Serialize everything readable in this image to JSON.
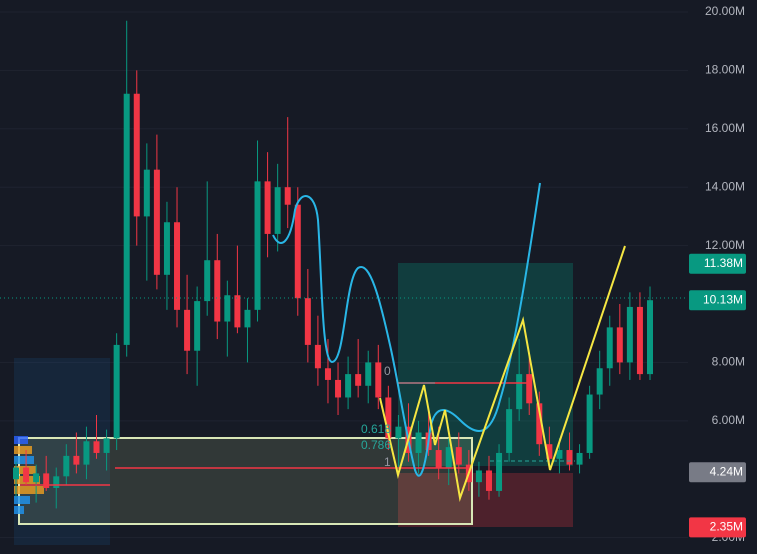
{
  "chart_data": {
    "type": "candlestick",
    "up_color": "#089981",
    "down_color": "#f23645",
    "ylim": [
      1.44,
      20.41
    ],
    "yticks": [
      {
        "value": 20,
        "label": "20.00M"
      },
      {
        "value": 18,
        "label": "18.00M"
      },
      {
        "value": 16,
        "label": "16.00M"
      },
      {
        "value": 14,
        "label": "14.00M"
      },
      {
        "value": 12,
        "label": "12.00M"
      },
      {
        "value": 8,
        "label": "8.00M"
      },
      {
        "value": 6,
        "label": "6.00M"
      },
      {
        "value": 2,
        "label": "2.00M"
      }
    ],
    "ohlc": [
      [
        4.0,
        4.6,
        3.4,
        4.4
      ],
      [
        4.4,
        5.0,
        3.8,
        3.9
      ],
      [
        3.9,
        4.5,
        3.2,
        4.2
      ],
      [
        4.2,
        4.8,
        3.6,
        3.7
      ],
      [
        3.7,
        4.4,
        3.0,
        4.1
      ],
      [
        4.1,
        5.2,
        3.8,
        4.8
      ],
      [
        4.8,
        5.6,
        4.2,
        4.5
      ],
      [
        4.5,
        5.8,
        4.0,
        5.3
      ],
      [
        5.3,
        6.2,
        4.7,
        4.9
      ],
      [
        4.9,
        5.7,
        4.3,
        5.4
      ],
      [
        5.4,
        9.0,
        5.0,
        8.6
      ],
      [
        8.6,
        19.7,
        8.2,
        17.2
      ],
      [
        17.2,
        18.0,
        12.0,
        13.0
      ],
      [
        13.0,
        15.5,
        10.8,
        14.6
      ],
      [
        14.6,
        15.8,
        10.5,
        11.0
      ],
      [
        11.0,
        13.5,
        9.8,
        12.8
      ],
      [
        12.8,
        14.0,
        9.2,
        9.8
      ],
      [
        9.8,
        11.0,
        7.6,
        8.4
      ],
      [
        8.4,
        10.6,
        7.2,
        10.1
      ],
      [
        10.1,
        14.2,
        9.6,
        11.5
      ],
      [
        11.5,
        12.4,
        8.8,
        9.4
      ],
      [
        9.4,
        10.8,
        8.2,
        10.3
      ],
      [
        10.3,
        12.0,
        9.0,
        9.2
      ],
      [
        9.2,
        10.2,
        8.0,
        9.8
      ],
      [
        9.8,
        15.6,
        9.4,
        14.2
      ],
      [
        14.2,
        15.2,
        11.6,
        12.4
      ],
      [
        12.4,
        14.8,
        11.8,
        14.0
      ],
      [
        14.0,
        16.4,
        12.6,
        13.4
      ],
      [
        13.4,
        14.0,
        9.6,
        10.2
      ],
      [
        10.2,
        11.2,
        8.0,
        8.6
      ],
      [
        8.6,
        9.6,
        7.2,
        7.8
      ],
      [
        7.8,
        8.8,
        6.6,
        7.4
      ],
      [
        7.4,
        8.0,
        6.2,
        6.8
      ],
      [
        6.8,
        8.2,
        6.4,
        7.6
      ],
      [
        7.6,
        8.8,
        6.8,
        7.2
      ],
      [
        7.2,
        8.4,
        6.6,
        8.0
      ],
      [
        8.0,
        8.6,
        6.4,
        6.8
      ],
      [
        6.8,
        7.2,
        5.0,
        5.4
      ],
      [
        5.4,
        6.2,
        4.4,
        5.8
      ],
      [
        5.8,
        6.6,
        4.6,
        4.9
      ],
      [
        4.9,
        6.0,
        4.2,
        5.6
      ],
      [
        5.6,
        6.4,
        4.8,
        5.0
      ],
      [
        5.0,
        5.8,
        4.0,
        4.4
      ],
      [
        4.4,
        5.4,
        3.8,
        5.1
      ],
      [
        5.1,
        5.6,
        4.2,
        4.5
      ],
      [
        4.5,
        5.0,
        3.6,
        3.9
      ],
      [
        3.9,
        4.6,
        3.4,
        4.3
      ],
      [
        4.3,
        4.8,
        3.3,
        3.6
      ],
      [
        3.6,
        5.2,
        3.4,
        4.9
      ],
      [
        4.9,
        6.8,
        4.6,
        6.4
      ],
      [
        6.4,
        8.8,
        6.0,
        7.6
      ],
      [
        7.6,
        8.2,
        6.2,
        6.6
      ],
      [
        6.6,
        7.0,
        4.8,
        5.2
      ],
      [
        5.2,
        5.8,
        4.4,
        4.7
      ],
      [
        4.7,
        5.4,
        4.2,
        5.0
      ],
      [
        5.0,
        5.6,
        4.3,
        4.5
      ],
      [
        4.5,
        5.2,
        4.2,
        4.9
      ],
      [
        4.9,
        7.2,
        4.7,
        6.9
      ],
      [
        6.9,
        8.4,
        6.4,
        7.8
      ],
      [
        7.8,
        9.6,
        7.2,
        9.2
      ],
      [
        9.2,
        10.0,
        7.6,
        8.0
      ],
      [
        8.0,
        10.4,
        7.4,
        9.9
      ],
      [
        9.9,
        10.4,
        7.4,
        7.6
      ],
      [
        7.6,
        10.6,
        7.4,
        10.13
      ]
    ],
    "price_labels": [
      {
        "value": 11.38,
        "label": "11.38M",
        "color": "#089981"
      },
      {
        "value": 10.13,
        "label": "10.13M",
        "color": "#089981"
      },
      {
        "value": 4.24,
        "label": "4.24M",
        "color": "#787b86"
      },
      {
        "value": 2.35,
        "label": "2.35M",
        "color": "#f23645"
      }
    ],
    "annotations": [
      "0",
      "0.618",
      "0.786",
      "1"
    ]
  }
}
